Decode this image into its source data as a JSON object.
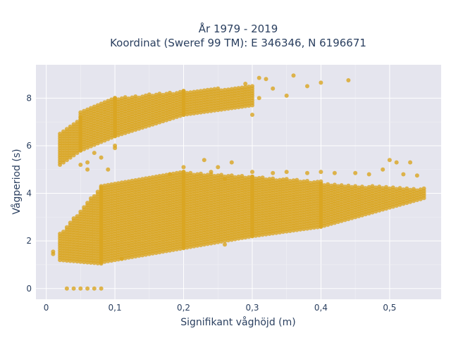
{
  "chart_data": {
    "type": "scatter",
    "title": "År 1979 - 2019",
    "subtitle": "Koordinat (Sweref 99 TM): E 346346, N 6196671",
    "xlabel": "Signifikant våghöjd (m)",
    "ylabel": "Vågperiod (s)",
    "xlim": [
      -0.015,
      0.575
    ],
    "ylim": [
      -0.45,
      9.4
    ],
    "x_ticks": [
      0,
      0.1,
      0.2,
      0.3,
      0.4,
      0.5
    ],
    "x_tick_labels": [
      "0",
      "0,1",
      "0,2",
      "0,3",
      "0,4",
      "0,5"
    ],
    "y_ticks": [
      0,
      2,
      4,
      6,
      8
    ],
    "y_tick_labels": [
      "0",
      "2",
      "4",
      "6",
      "8"
    ],
    "grid": true,
    "marker_color": "#daa520",
    "background_color": "#e5e5ee",
    "bands": [
      {
        "x": [
          0.01,
          0.01
        ],
        "lower": [
          1.45,
          1.45
        ],
        "upper": [
          1.6,
          1.6
        ]
      },
      {
        "x": [
          0.02,
          0.08
        ],
        "lower": [
          1.2,
          1.05
        ],
        "upper": [
          2.3,
          4.3
        ]
      },
      {
        "x": [
          0.08,
          0.2
        ],
        "lower": [
          1.1,
          1.7
        ],
        "upper": [
          4.3,
          4.9
        ]
      },
      {
        "x": [
          0.2,
          0.3
        ],
        "lower": [
          1.7,
          2.2
        ],
        "upper": [
          4.9,
          4.7
        ]
      },
      {
        "x": [
          0.3,
          0.4
        ],
        "lower": [
          2.2,
          2.6
        ],
        "upper": [
          4.7,
          4.5
        ]
      },
      {
        "x": [
          0.4,
          0.55
        ],
        "lower": [
          2.6,
          3.8
        ],
        "upper": [
          4.4,
          4.2
        ]
      },
      {
        "x": [
          0.02,
          0.05
        ],
        "lower": [
          5.2,
          5.8
        ],
        "upper": [
          6.5,
          7.2
        ]
      },
      {
        "x": [
          0.05,
          0.1
        ],
        "lower": [
          5.8,
          6.4
        ],
        "upper": [
          7.4,
          8.0
        ]
      },
      {
        "x": [
          0.1,
          0.2
        ],
        "lower": [
          6.4,
          7.3
        ],
        "upper": [
          8.0,
          8.3
        ]
      },
      {
        "x": [
          0.2,
          0.3
        ],
        "lower": [
          7.3,
          7.7
        ],
        "upper": [
          8.3,
          8.5
        ]
      }
    ],
    "scattered_points": [
      {
        "x": 0.03,
        "y": 0
      },
      {
        "x": 0.04,
        "y": 0
      },
      {
        "x": 0.05,
        "y": 0
      },
      {
        "x": 0.06,
        "y": 0
      },
      {
        "x": 0.07,
        "y": 0
      },
      {
        "x": 0.08,
        "y": 0
      },
      {
        "x": 0.31,
        "y": 8.85
      },
      {
        "x": 0.32,
        "y": 8.8
      },
      {
        "x": 0.36,
        "y": 8.95
      },
      {
        "x": 0.38,
        "y": 8.5
      },
      {
        "x": 0.4,
        "y": 8.65
      },
      {
        "x": 0.44,
        "y": 8.75
      },
      {
        "x": 0.29,
        "y": 8.6
      },
      {
        "x": 0.33,
        "y": 8.4
      },
      {
        "x": 0.35,
        "y": 8.1
      },
      {
        "x": 0.3,
        "y": 7.3
      },
      {
        "x": 0.31,
        "y": 8.0
      },
      {
        "x": 0.1,
        "y": 6.0
      },
      {
        "x": 0.1,
        "y": 5.9
      },
      {
        "x": 0.06,
        "y": 5.0
      },
      {
        "x": 0.06,
        "y": 5.3
      },
      {
        "x": 0.07,
        "y": 5.7
      },
      {
        "x": 0.05,
        "y": 5.2
      },
      {
        "x": 0.08,
        "y": 5.5
      },
      {
        "x": 0.09,
        "y": 5.0
      },
      {
        "x": 0.23,
        "y": 5.4
      },
      {
        "x": 0.27,
        "y": 5.3
      },
      {
        "x": 0.5,
        "y": 5.4
      },
      {
        "x": 0.51,
        "y": 5.3
      },
      {
        "x": 0.53,
        "y": 5.3
      },
      {
        "x": 0.49,
        "y": 5.0
      },
      {
        "x": 0.25,
        "y": 5.1
      },
      {
        "x": 0.24,
        "y": 4.9
      },
      {
        "x": 0.26,
        "y": 4.6
      },
      {
        "x": 0.2,
        "y": 5.1
      },
      {
        "x": 0.2,
        "y": 4.7
      },
      {
        "x": 0.18,
        "y": 4.8
      },
      {
        "x": 0.3,
        "y": 4.9
      },
      {
        "x": 0.33,
        "y": 4.85
      },
      {
        "x": 0.35,
        "y": 4.9
      },
      {
        "x": 0.38,
        "y": 4.85
      },
      {
        "x": 0.4,
        "y": 4.9
      },
      {
        "x": 0.42,
        "y": 4.85
      },
      {
        "x": 0.45,
        "y": 4.85
      },
      {
        "x": 0.47,
        "y": 4.8
      },
      {
        "x": 0.52,
        "y": 4.8
      },
      {
        "x": 0.54,
        "y": 4.75
      },
      {
        "x": 0.11,
        "y": 1.25
      },
      {
        "x": 0.26,
        "y": 1.85
      }
    ]
  }
}
